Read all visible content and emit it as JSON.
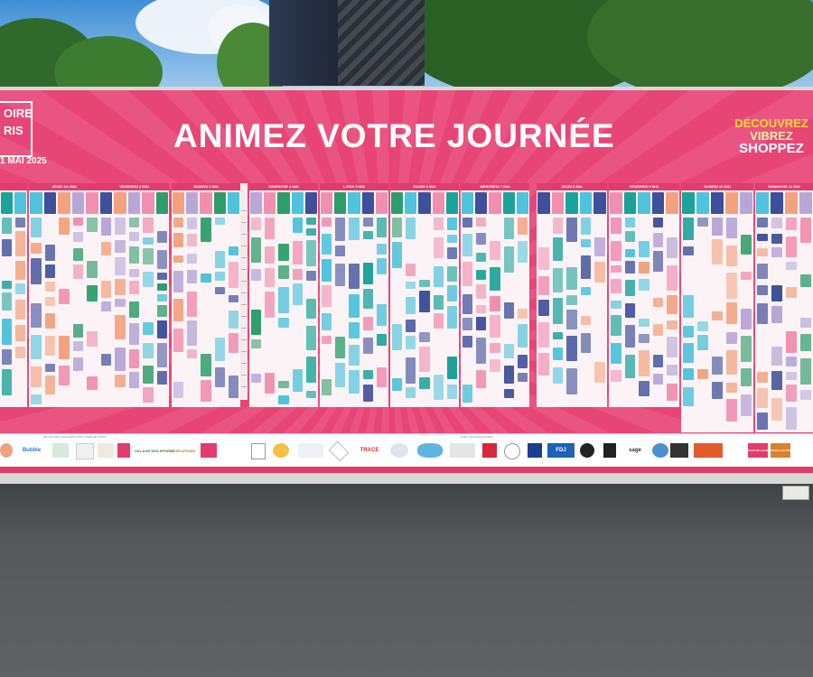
{
  "board": {
    "logo_top": "OIRE",
    "logo_bottom": "RIS",
    "dates": "1 MAI 2025",
    "headline": "ANIMEZ VOTRE JOURNÉE",
    "slogan": [
      "DÉCOUVREZ",
      "VIBREZ",
      "SHOPPEZ"
    ]
  },
  "days": [
    "JEUDI 1er MAI",
    "VENDREDI 2 MAI",
    "SAMEDI 3 MAI",
    "DIMANCHE 4 MAI",
    "LUNDI 5 MAI",
    "MARDI 6 MAI",
    "MERCREDI 7 MAI",
    "JEUDI 8 MAI",
    "VENDREDI 9 MAI",
    "SAMEDI 10 MAI",
    "DIMANCHE 11 MAI"
  ],
  "partners": {
    "label_left": "RETROUVEZ LES ANIMATIONS FOIRE DE PARIS",
    "label_right": "AVEC LES PARTENAIRES",
    "logos": [
      "Bubble",
      "VILLAGE DES SPORTS",
      "RÉVÉLATIONS",
      "TRACE",
      "FDJ",
      "sage",
      "MARCHÉ DE LA FOIRE",
      "MAISON & CO PARIS"
    ]
  },
  "colors": {
    "pink": "#e84577",
    "teal": "#1aa39a",
    "cyan": "#4ec3db",
    "navy": "#3e4f9b",
    "salmon": "#f2a27e",
    "lilac": "#b7a6d6",
    "rose": "#f08fb0",
    "green": "#2e9d6b"
  }
}
